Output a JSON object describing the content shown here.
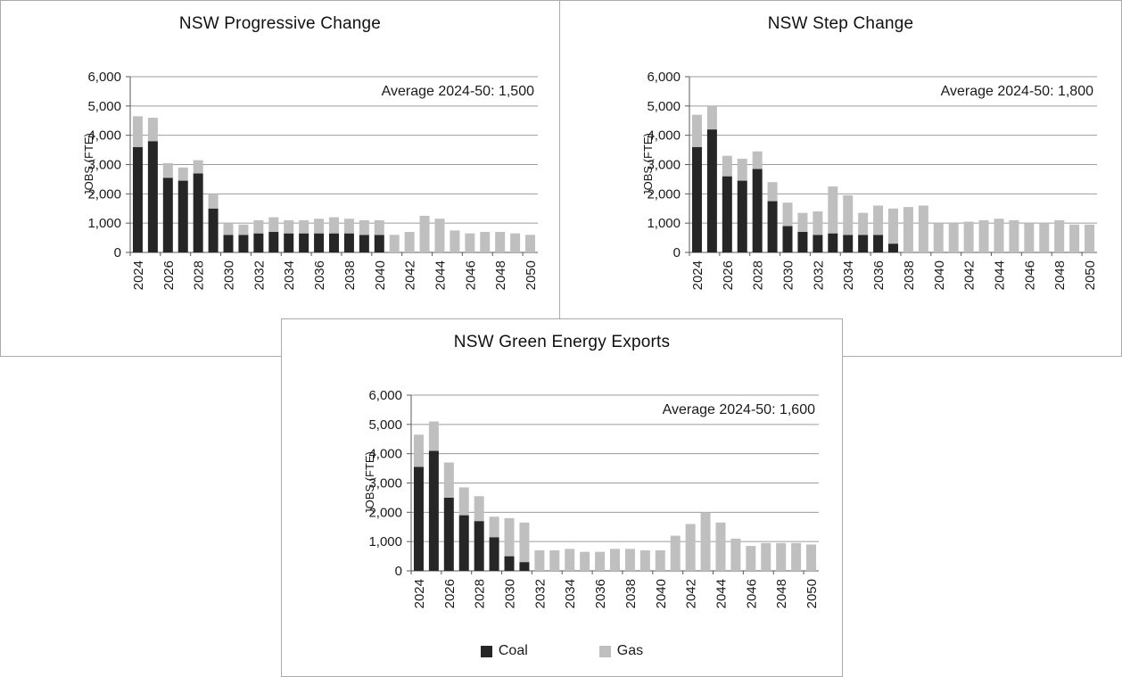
{
  "page": {
    "background": "#ffffff",
    "panel_border": "#ababab",
    "grid_color": "#9c9c9c",
    "axis_color": "#595959"
  },
  "legend": {
    "items": [
      {
        "label": "Coal",
        "color": "#262626"
      },
      {
        "label": "Gas",
        "color": "#bfbfbf"
      }
    ]
  },
  "chart_data": [
    {
      "type": "bar",
      "stacked": true,
      "title": "NSW Progressive Change",
      "ylabel": "JOBS (FTE)",
      "annotation": "Average 2024-50: 1,500",
      "average_2024_50": 1500,
      "ylim": [
        0,
        6000
      ],
      "ytick_step": 1000,
      "x_tick_interval": 2,
      "grid": true,
      "x": [
        2024,
        2025,
        2026,
        2027,
        2028,
        2029,
        2030,
        2031,
        2032,
        2033,
        2034,
        2035,
        2036,
        2037,
        2038,
        2039,
        2040,
        2041,
        2042,
        2043,
        2044,
        2045,
        2046,
        2047,
        2048,
        2049,
        2050
      ],
      "series": [
        {
          "name": "Coal",
          "color": "#262626",
          "values": [
            3600,
            3800,
            2550,
            2450,
            2700,
            1500,
            600,
            600,
            650,
            700,
            650,
            650,
            650,
            650,
            650,
            600,
            600,
            0,
            0,
            0,
            0,
            0,
            0,
            0,
            0,
            0,
            0
          ]
        },
        {
          "name": "Gas",
          "color": "#bfbfbf",
          "values": [
            1050,
            800,
            500,
            450,
            450,
            500,
            400,
            350,
            450,
            500,
            450,
            450,
            500,
            550,
            500,
            500,
            500,
            600,
            700,
            1250,
            1150,
            750,
            650,
            700,
            700,
            650,
            600
          ]
        }
      ]
    },
    {
      "type": "bar",
      "stacked": true,
      "title": "NSW Step Change",
      "ylabel": "JOBS (FTE)",
      "annotation": "Average 2024-50: 1,800",
      "average_2024_50": 1800,
      "ylim": [
        0,
        6000
      ],
      "ytick_step": 1000,
      "x_tick_interval": 2,
      "grid": true,
      "x": [
        2024,
        2025,
        2026,
        2027,
        2028,
        2029,
        2030,
        2031,
        2032,
        2033,
        2034,
        2035,
        2036,
        2037,
        2038,
        2039,
        2040,
        2041,
        2042,
        2043,
        2044,
        2045,
        2046,
        2047,
        2048,
        2049,
        2050
      ],
      "series": [
        {
          "name": "Coal",
          "color": "#262626",
          "values": [
            3600,
            4200,
            2600,
            2450,
            2850,
            1750,
            900,
            700,
            600,
            650,
            600,
            600,
            600,
            300,
            0,
            0,
            0,
            0,
            0,
            0,
            0,
            0,
            0,
            0,
            0,
            0,
            0
          ]
        },
        {
          "name": "Gas",
          "color": "#bfbfbf",
          "values": [
            1100,
            800,
            700,
            750,
            600,
            650,
            800,
            650,
            800,
            1600,
            1350,
            750,
            1000,
            1200,
            1550,
            1600,
            1000,
            1000,
            1050,
            1100,
            1150,
            1100,
            1000,
            1000,
            1100,
            950,
            950
          ]
        }
      ]
    },
    {
      "type": "bar",
      "stacked": true,
      "title": "NSW Green Energy Exports",
      "ylabel": "JOBS (FTE)",
      "annotation": "Average 2024-50: 1,600",
      "average_2024_50": 1600,
      "ylim": [
        0,
        6000
      ],
      "ytick_step": 1000,
      "x_tick_interval": 2,
      "grid": true,
      "legend_position": "bottom",
      "x": [
        2024,
        2025,
        2026,
        2027,
        2028,
        2029,
        2030,
        2031,
        2032,
        2033,
        2034,
        2035,
        2036,
        2037,
        2038,
        2039,
        2040,
        2041,
        2042,
        2043,
        2044,
        2045,
        2046,
        2047,
        2048,
        2049,
        2050
      ],
      "series": [
        {
          "name": "Coal",
          "color": "#262626",
          "values": [
            3550,
            4100,
            2500,
            1900,
            1700,
            1150,
            500,
            300,
            0,
            0,
            0,
            0,
            0,
            0,
            0,
            0,
            0,
            0,
            0,
            0,
            0,
            0,
            0,
            0,
            0,
            0,
            0
          ]
        },
        {
          "name": "Gas",
          "color": "#bfbfbf",
          "values": [
            1100,
            1000,
            1200,
            950,
            850,
            700,
            1300,
            1350,
            700,
            700,
            750,
            650,
            650,
            750,
            750,
            700,
            700,
            1200,
            1600,
            2000,
            1650,
            1100,
            850,
            950,
            950,
            950,
            900
          ]
        }
      ]
    }
  ]
}
